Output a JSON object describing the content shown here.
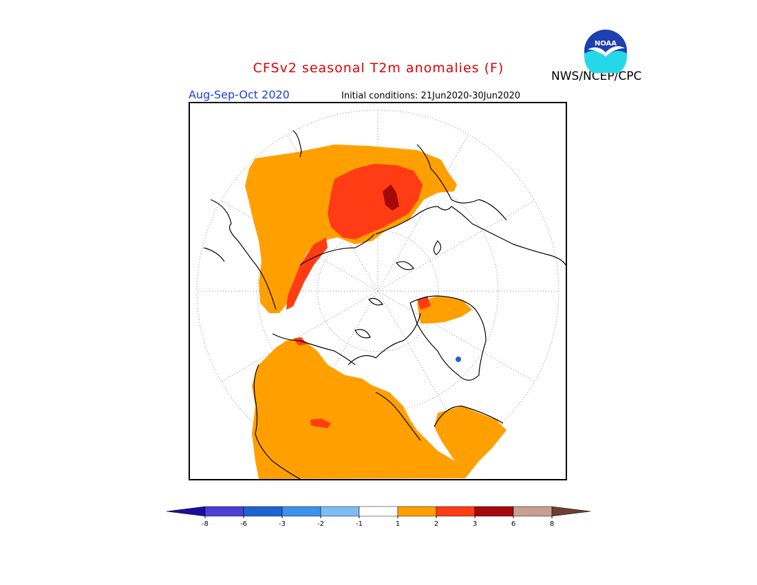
{
  "header": {
    "title": "CFSv2 seasonal T2m anomalies (F)",
    "season": "Aug-Sep-Oct 2020",
    "initial_conditions": "Initial conditions: 21Jun2020-30Jun2020",
    "agency": "NWS/NCEP/CPC",
    "logo_text": "NOAA"
  },
  "colorbar": {
    "bins": [
      {
        "color": "#1a0f9c"
      },
      {
        "color": "#4b3fd6"
      },
      {
        "color": "#1e63d0"
      },
      {
        "color": "#3d92ea"
      },
      {
        "color": "#7fbcf2"
      },
      {
        "color": "#ffffff"
      },
      {
        "color": "#ffa000"
      },
      {
        "color": "#ff3c14"
      },
      {
        "color": "#a50a0a"
      },
      {
        "color": "#c8a090"
      },
      {
        "color": "#6b4030"
      }
    ],
    "tick_labels": [
      "-8",
      "-6",
      "-3",
      "-2",
      "-1",
      "1",
      "2",
      "3",
      "6",
      "8"
    ]
  },
  "map": {
    "projection": "north-polar-stereographic",
    "colors": {
      "orange": "#ffa000",
      "red": "#ff3c14",
      "darkred": "#a50a0a",
      "blue": "#1e63d0"
    }
  }
}
